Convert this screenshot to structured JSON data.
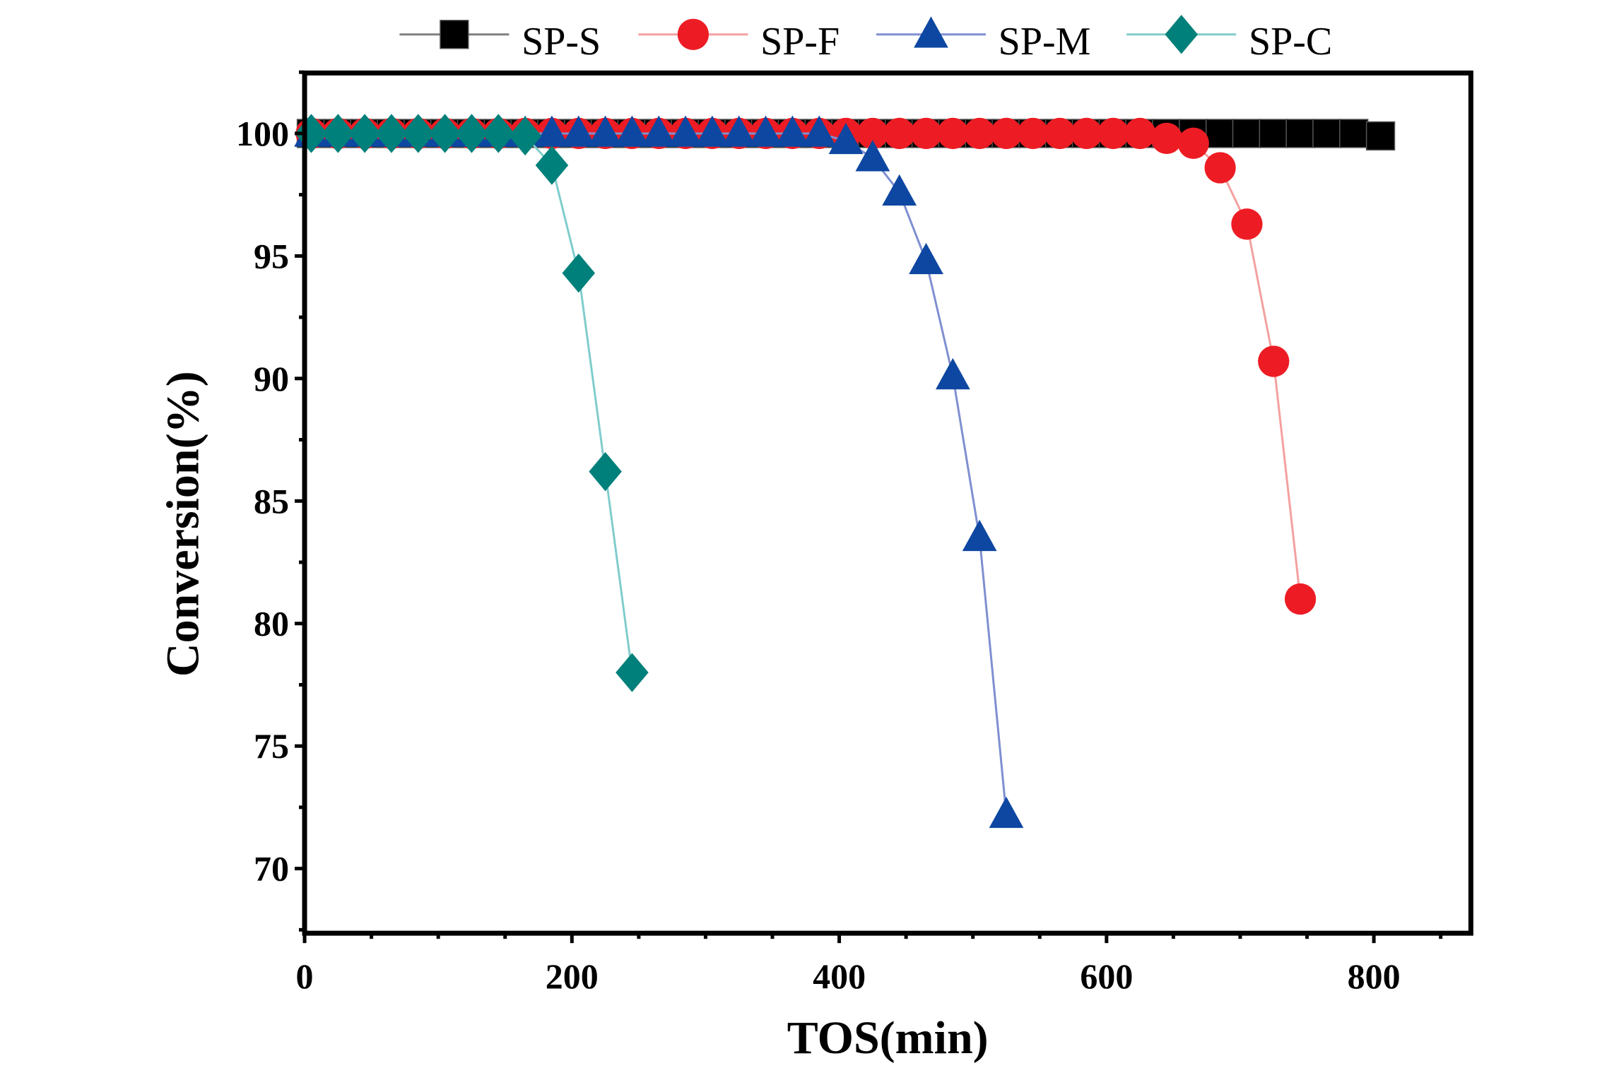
{
  "chart_data": {
    "type": "line",
    "title": "",
    "xlabel": "TOS(min)",
    "ylabel": "Conversion(%)",
    "xlim": [
      0,
      870
    ],
    "ylim": [
      67.5,
      102.5
    ],
    "xticks": [
      0,
      200,
      400,
      600,
      800
    ],
    "yticks": [
      70,
      75,
      80,
      85,
      90,
      95,
      100
    ],
    "xtick_labels": [
      "0",
      "200",
      "400",
      "600",
      "800"
    ],
    "ytick_labels": [
      "70",
      "75",
      "80",
      "85",
      "90",
      "95",
      "100"
    ],
    "grid": false,
    "legend_position": "top-outside",
    "series": [
      {
        "name": "SP-S",
        "marker": "square",
        "color": "#000000",
        "line_color": "#808080",
        "x": [
          5,
          25,
          45,
          65,
          85,
          105,
          125,
          145,
          165,
          185,
          205,
          225,
          245,
          265,
          285,
          305,
          325,
          345,
          365,
          385,
          405,
          425,
          445,
          465,
          485,
          505,
          525,
          545,
          565,
          585,
          605,
          625,
          645,
          665,
          685,
          705,
          725,
          745,
          765,
          785,
          805
        ],
        "y": [
          100,
          100,
          100,
          100,
          100,
          100,
          100,
          100,
          100,
          100,
          100,
          100,
          100,
          100,
          100,
          100,
          100,
          100,
          100,
          100,
          100,
          100,
          100,
          100,
          100,
          100,
          100,
          100,
          100,
          100,
          100,
          100,
          100,
          100,
          100,
          100,
          100,
          100,
          100,
          100,
          99.9
        ]
      },
      {
        "name": "SP-F",
        "marker": "circle",
        "color": "#ED1C24",
        "line_color": "#F4A0A0",
        "x": [
          5,
          25,
          45,
          65,
          85,
          105,
          125,
          145,
          165,
          185,
          205,
          225,
          245,
          265,
          285,
          305,
          325,
          345,
          365,
          385,
          405,
          425,
          445,
          465,
          485,
          505,
          525,
          545,
          565,
          585,
          605,
          625,
          645,
          665,
          685,
          705,
          725,
          745
        ],
        "y": [
          100,
          100,
          100,
          100,
          100,
          100,
          100,
          100,
          100,
          100,
          100,
          100,
          100,
          100,
          100,
          100,
          100,
          100,
          100,
          100,
          100,
          100,
          100,
          100,
          100,
          100,
          100,
          100,
          100,
          100,
          100,
          100,
          99.8,
          99.6,
          98.6,
          96.3,
          90.7,
          81.0
        ]
      },
      {
        "name": "SP-M",
        "marker": "triangle",
        "color": "#0D47A1",
        "line_color": "#7F8FD0",
        "x": [
          5,
          25,
          45,
          65,
          85,
          105,
          125,
          145,
          165,
          185,
          205,
          225,
          245,
          265,
          285,
          305,
          325,
          345,
          365,
          385,
          405,
          425,
          445,
          465,
          485,
          505,
          525
        ],
        "y": [
          100,
          100,
          100,
          100,
          100,
          100,
          100,
          100,
          100,
          100,
          100,
          100,
          100,
          100,
          100,
          100,
          100,
          100,
          100,
          100,
          99.7,
          99.0,
          97.6,
          94.8,
          90.1,
          83.5,
          72.2
        ]
      },
      {
        "name": "SP-C",
        "marker": "diamond",
        "color": "#00807A",
        "line_color": "#80CCCC",
        "x": [
          5,
          25,
          45,
          65,
          85,
          105,
          125,
          145,
          165,
          185,
          205,
          225,
          245
        ],
        "y": [
          100,
          100,
          100,
          100,
          100,
          100,
          100,
          100,
          99.9,
          98.7,
          94.3,
          86.2,
          78.0
        ]
      }
    ]
  }
}
